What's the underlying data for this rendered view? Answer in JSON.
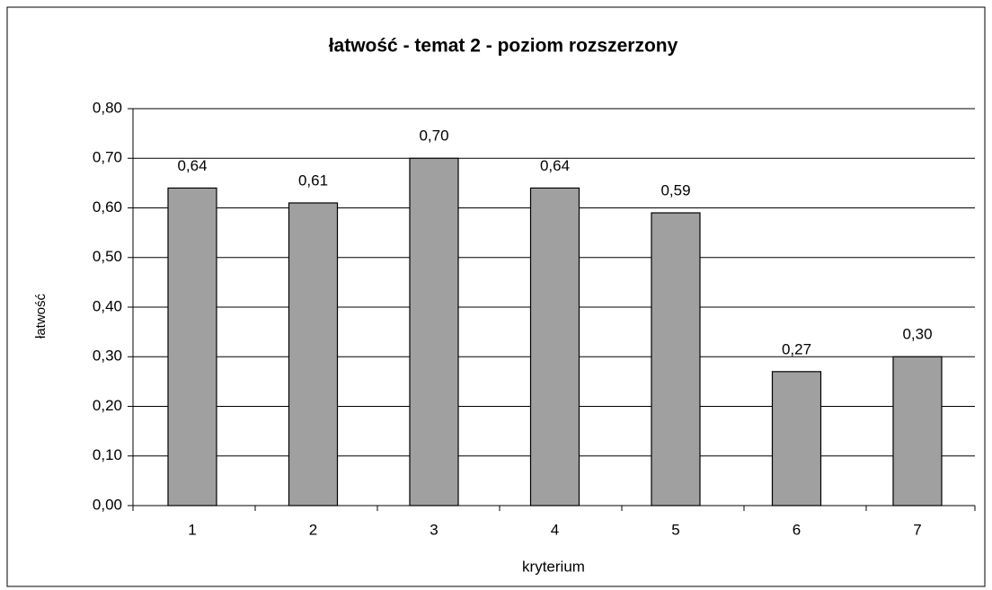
{
  "chart_data": {
    "type": "bar",
    "title": "łatwość - temat 2 - poziom rozszerzony",
    "x_label": "kryterium",
    "y_label": "łatwość",
    "categories": [
      "1",
      "2",
      "3",
      "4",
      "5",
      "6",
      "7"
    ],
    "values": [
      0.64,
      0.61,
      0.7,
      0.64,
      0.59,
      0.27,
      0.3
    ],
    "value_labels": [
      "0,64",
      "0,61",
      "0,70",
      "0,64",
      "0,59",
      "0,27",
      "0,30"
    ],
    "color": "#a0a0a0",
    "ylim": [
      0,
      0.8
    ],
    "yticks": [
      {
        "value": 0,
        "label": "0,00"
      },
      {
        "value": 0.1,
        "label": "0,10"
      },
      {
        "value": 0.2,
        "label": "0,20"
      },
      {
        "value": 0.3,
        "label": "0,30"
      },
      {
        "value": 0.4,
        "label": "0,40"
      },
      {
        "value": 0.5,
        "label": "0,50"
      },
      {
        "value": 0.6,
        "label": "0,60"
      },
      {
        "value": 0.7,
        "label": "0,70"
      },
      {
        "value": 0.8,
        "label": "0,80"
      }
    ],
    "grid": true
  }
}
